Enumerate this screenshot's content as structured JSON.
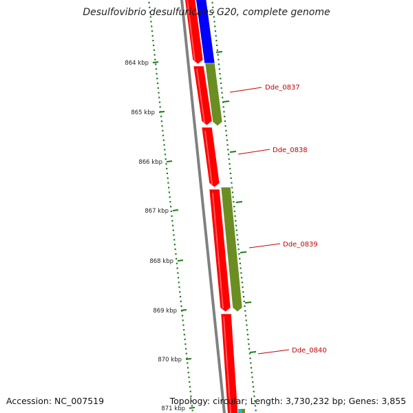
{
  "title": "Desulfovibrio desulfuricans G20, complete genome",
  "accession_text": "Accession: NC_007519",
  "summary_text": "Topology: circular; Length: 3,730,232 bp; Genes: 3,855",
  "colors": {
    "backbone": "#808080",
    "tick": "#1a7a1a",
    "label_line": "#c00000",
    "forward_gene": "#ff0000",
    "blue_feature": "#0000ff",
    "olive_feature": "#6b8e23",
    "cyan_feature": "#00c8c8"
  },
  "ticks": [
    "864 kbp",
    "865 kbp",
    "866 kbp",
    "867 kbp",
    "868 kbp",
    "869 kbp",
    "870 kbp",
    "871 kbp"
  ],
  "gene_labels": [
    "Dde_0837",
    "Dde_0838",
    "Dde_0839",
    "Dde_0840"
  ]
}
